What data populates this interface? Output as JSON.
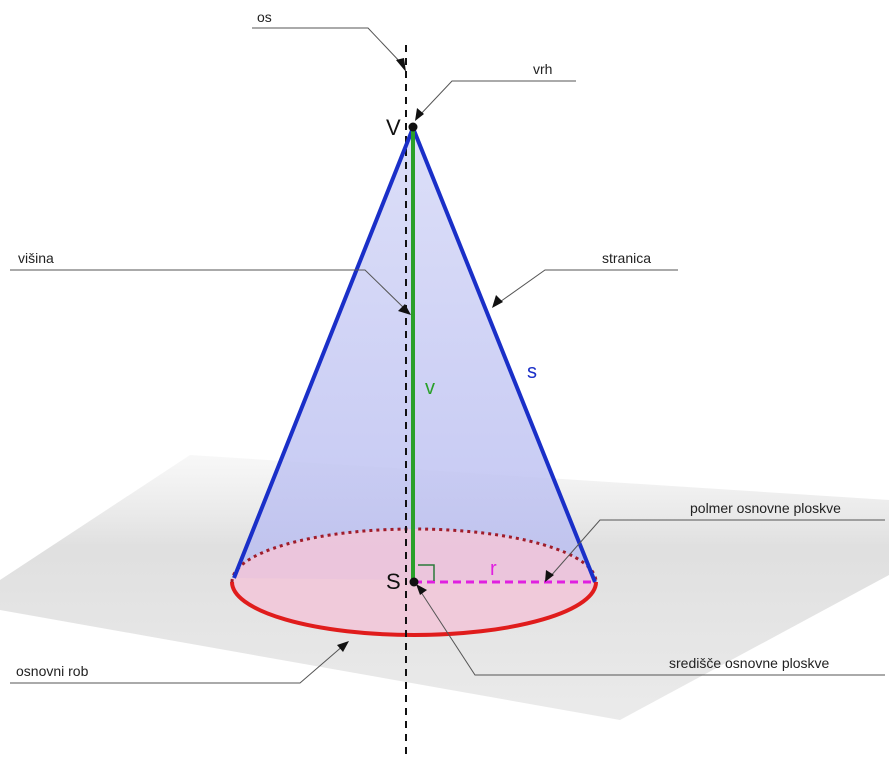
{
  "labels": {
    "axis": "os",
    "apex": "vrh",
    "height": "višina",
    "slant": "stranica",
    "radius": "polmer osnovne ploskve",
    "base_edge": "osnovni rob",
    "base_center": "središče osnovne ploskve"
  },
  "points": {
    "apex": "V",
    "center": "S"
  },
  "symbols": {
    "height": "v",
    "slant": "s",
    "radius": "r"
  },
  "colors": {
    "slant": "#1a2fc8",
    "height": "#2aa02a",
    "radius": "#e020e0",
    "base_edge": "#e01c1c",
    "cone_fill": "#c8ccf4",
    "base_fill": "#f4c8d8",
    "ground": "#dcdcdc"
  }
}
